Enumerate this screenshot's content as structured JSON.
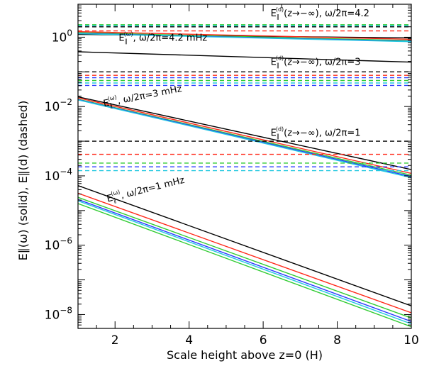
{
  "chart_data": {
    "type": "line",
    "title": "",
    "xlabel": "Scale height above z=0 (H)",
    "ylabel": "E∥(ω) (solid), E∥(d) (dashed)",
    "xlim": [
      1,
      10
    ],
    "ylim_log10": [
      -8.4,
      0.95
    ],
    "yscale": "log",
    "grid": false,
    "x_ticks": [
      2,
      4,
      6,
      8,
      10
    ],
    "y_ticks": [
      {
        "exp": 0,
        "label_base": "10",
        "label_exp": "0"
      },
      {
        "exp": -2,
        "label_base": "10",
        "label_exp": "−2"
      },
      {
        "exp": -4,
        "label_base": "10",
        "label_exp": "−4"
      },
      {
        "exp": -6,
        "label_base": "10",
        "label_exp": "−6"
      },
      {
        "exp": -8,
        "label_base": "10",
        "label_exp": "−8"
      }
    ],
    "annotations": [
      {
        "main": "E",
        "sub": "∥",
        "sup": "(d)",
        "rest": "(z→−∞),  ω/2π=4.2",
        "x": 6.2,
        "y_log10": 0.6,
        "angle": 0
      },
      {
        "main": "E",
        "sub": "∥",
        "sup": "(ω)",
        "rest": ",  ω/2π=4.2 mHz",
        "x": 2.1,
        "y_log10": -0.1,
        "angle": 0
      },
      {
        "main": "E",
        "sub": "∥",
        "sup": "(d)",
        "rest": "(z→−∞),  ω/2π=3",
        "x": 6.2,
        "y_log10": -0.8,
        "angle": 0
      },
      {
        "main": "E",
        "sub": "∥",
        "sup": "(ω)",
        "rest": ",  ω/2π=3 mHz",
        "x": 1.7,
        "y_log10": -2.0,
        "angle": 11
      },
      {
        "main": "E",
        "sub": "∥",
        "sup": "(d)",
        "rest": "(z→−∞),  ω/2π=1",
        "x": 6.2,
        "y_log10": -2.85,
        "angle": 0
      },
      {
        "main": "E",
        "sub": "∥",
        "sup": "(ω)",
        "rest": ",  ω/2π=1 mHz",
        "x": 1.8,
        "y_log10": -4.75,
        "angle": 14
      }
    ],
    "colors": {
      "black": "#000000",
      "red": "#ff2a1a",
      "green": "#33cc33",
      "blue": "#2a3cff",
      "cyan": "#22c8e0"
    },
    "series": [
      {
        "group": "4.2 mHz",
        "style": "solid",
        "color": "black",
        "x": [
          1,
          10
        ],
        "y_log10": [
          -0.42,
          -0.72
        ]
      },
      {
        "group": "4.2 mHz",
        "style": "solid",
        "color": "black",
        "x": [
          1,
          10
        ],
        "y_log10": [
          0.08,
          -0.02
        ]
      },
      {
        "group": "4.2 mHz",
        "style": "solid",
        "color": "red",
        "x": [
          1,
          10
        ],
        "y_log10": [
          0.16,
          -0.06
        ]
      },
      {
        "group": "4.2 mHz",
        "style": "solid",
        "color": "green",
        "x": [
          1,
          10
        ],
        "y_log10": [
          0.13,
          -0.1
        ]
      },
      {
        "group": "4.2 mHz",
        "style": "solid",
        "color": "blue",
        "x": [
          1,
          10
        ],
        "y_log10": [
          0.11,
          -0.12
        ]
      },
      {
        "group": "4.2 mHz",
        "style": "solid",
        "color": "cyan",
        "x": [
          1,
          10
        ],
        "y_log10": [
          0.1,
          -0.13
        ]
      },
      {
        "group": "4.2 mHz",
        "style": "dashed",
        "color": "black",
        "x": [
          1,
          10
        ],
        "y_log10": [
          0.3,
          0.3
        ]
      },
      {
        "group": "4.2 mHz",
        "style": "dashed",
        "color": "red",
        "x": [
          1,
          10
        ],
        "y_log10": [
          0.18,
          0.18
        ]
      },
      {
        "group": "4.2 mHz",
        "style": "dashed",
        "color": "green",
        "x": [
          1,
          10
        ],
        "y_log10": [
          0.36,
          0.36
        ]
      },
      {
        "group": "4.2 mHz",
        "style": "dashed",
        "color": "cyan",
        "x": [
          1,
          10
        ],
        "y_log10": [
          0.33,
          0.33
        ]
      },
      {
        "group": "3 mHz",
        "style": "solid",
        "color": "black",
        "x": [
          1,
          10
        ],
        "y_log10": [
          -1.72,
          -3.82
        ]
      },
      {
        "group": "3 mHz",
        "style": "solid",
        "color": "red",
        "x": [
          1,
          10
        ],
        "y_log10": [
          -1.75,
          -3.93
        ]
      },
      {
        "group": "3 mHz",
        "style": "solid",
        "color": "green",
        "x": [
          1,
          10
        ],
        "y_log10": [
          -1.79,
          -3.98
        ]
      },
      {
        "group": "3 mHz",
        "style": "solid",
        "color": "blue",
        "x": [
          1,
          10
        ],
        "y_log10": [
          -1.8,
          -4.02
        ]
      },
      {
        "group": "3 mHz",
        "style": "solid",
        "color": "cyan",
        "x": [
          1,
          10
        ],
        "y_log10": [
          -1.81,
          -4.05
        ]
      },
      {
        "group": "3 mHz",
        "style": "dashed",
        "color": "black",
        "x": [
          1,
          10
        ],
        "y_log10": [
          -1.0,
          -1.0
        ]
      },
      {
        "group": "3 mHz",
        "style": "dashed",
        "color": "red",
        "x": [
          1,
          10
        ],
        "y_log10": [
          -1.1,
          -1.1
        ]
      },
      {
        "group": "3 mHz",
        "style": "dashed",
        "color": "blue",
        "x": [
          1,
          10
        ],
        "y_log10": [
          -1.17,
          -1.17
        ]
      },
      {
        "group": "3 mHz",
        "style": "dashed",
        "color": "green",
        "x": [
          1,
          10
        ],
        "y_log10": [
          -1.25,
          -1.25
        ]
      },
      {
        "group": "3 mHz",
        "style": "dashed",
        "color": "cyan",
        "x": [
          1,
          10
        ],
        "y_log10": [
          -1.32,
          -1.32
        ]
      },
      {
        "group": "3 mHz",
        "style": "dashed",
        "color": "blue",
        "x": [
          1,
          10
        ],
        "y_log10": [
          -1.39,
          -1.39
        ]
      },
      {
        "group": "1 mHz",
        "style": "solid",
        "color": "black",
        "x": [
          1,
          10
        ],
        "y_log10": [
          -4.28,
          -7.75
        ]
      },
      {
        "group": "1 mHz",
        "style": "solid",
        "color": "red",
        "x": [
          1,
          10
        ],
        "y_log10": [
          -4.5,
          -7.95
        ]
      },
      {
        "group": "1 mHz",
        "style": "solid",
        "color": "green",
        "x": [
          1,
          10
        ],
        "y_log10": [
          -4.62,
          -8.1
        ]
      },
      {
        "group": "1 mHz",
        "style": "solid",
        "color": "blue",
        "x": [
          1,
          10
        ],
        "y_log10": [
          -4.68,
          -8.2
        ]
      },
      {
        "group": "1 mHz",
        "style": "solid",
        "color": "cyan",
        "x": [
          1,
          10
        ],
        "y_log10": [
          -4.72,
          -8.27
        ]
      },
      {
        "group": "1 mHz",
        "style": "solid",
        "color": "green",
        "x": [
          1,
          10
        ],
        "y_log10": [
          -4.8,
          -8.35
        ]
      },
      {
        "group": "1 mHz",
        "style": "dashed",
        "color": "black",
        "x": [
          1,
          10
        ],
        "y_log10": [
          -3.0,
          -3.0
        ]
      },
      {
        "group": "1 mHz",
        "style": "dashed",
        "color": "red",
        "x": [
          1,
          10
        ],
        "y_log10": [
          -3.38,
          -3.38
        ]
      },
      {
        "group": "1 mHz",
        "style": "dashed",
        "color": "green",
        "x": [
          1,
          10
        ],
        "y_log10": [
          -3.63,
          -3.63
        ]
      },
      {
        "group": "1 mHz",
        "style": "dashed",
        "color": "blue",
        "x": [
          1,
          10
        ],
        "y_log10": [
          -3.74,
          -3.74
        ]
      },
      {
        "group": "1 mHz",
        "style": "dashed",
        "color": "cyan",
        "x": [
          1,
          10
        ],
        "y_log10": [
          -3.85,
          -3.85
        ]
      }
    ]
  }
}
